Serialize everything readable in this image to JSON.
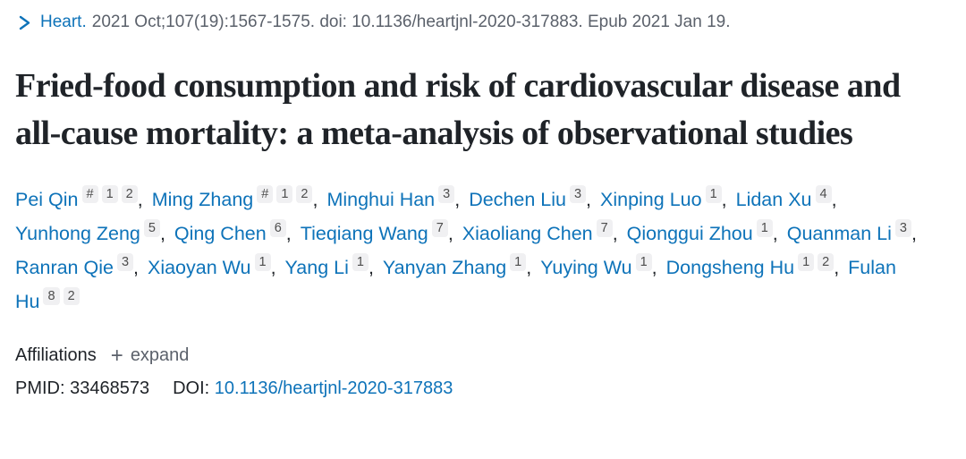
{
  "colors": {
    "link_blue": "#0e73b9",
    "text_dark": "#1f2328",
    "text_gray": "#5b616b",
    "badge_bg": "#f0f0f2",
    "badge_text": "#4d4d4d",
    "page_bg": "#ffffff"
  },
  "citation": {
    "journal": "Heart.",
    "details": "2021 Oct;107(19):1567-1575. doi: 10.1136/heartjnl-2020-317883. Epub 2021 Jan 19."
  },
  "title": "Fried-food consumption and risk of cardiovascular disease and all-cause mortality: a meta-analysis of observational studies",
  "authors": [
    {
      "name": "Pei Qin",
      "sups": [
        "#",
        "1",
        "2"
      ]
    },
    {
      "name": "Ming Zhang",
      "sups": [
        "#",
        "1",
        "2"
      ]
    },
    {
      "name": "Minghui Han",
      "sups": [
        "3"
      ]
    },
    {
      "name": "Dechen Liu",
      "sups": [
        "3"
      ]
    },
    {
      "name": "Xinping Luo",
      "sups": [
        "1"
      ]
    },
    {
      "name": "Lidan Xu",
      "sups": [
        "4"
      ]
    },
    {
      "name": "Yunhong Zeng",
      "sups": [
        "5"
      ]
    },
    {
      "name": "Qing Chen",
      "sups": [
        "6"
      ]
    },
    {
      "name": "Tieqiang Wang",
      "sups": [
        "7"
      ]
    },
    {
      "name": "Xiaoliang Chen",
      "sups": [
        "7"
      ]
    },
    {
      "name": "Qionggui Zhou",
      "sups": [
        "1"
      ]
    },
    {
      "name": "Quanman Li",
      "sups": [
        "3"
      ]
    },
    {
      "name": "Ranran Qie",
      "sups": [
        "3"
      ]
    },
    {
      "name": "Xiaoyan Wu",
      "sups": [
        "1"
      ]
    },
    {
      "name": "Yang Li",
      "sups": [
        "1"
      ]
    },
    {
      "name": "Yanyan Zhang",
      "sups": [
        "1"
      ]
    },
    {
      "name": "Yuying Wu",
      "sups": [
        "1"
      ]
    },
    {
      "name": "Dongsheng Hu",
      "sups": [
        "1",
        "2"
      ]
    },
    {
      "name": "Fulan Hu",
      "sups": [
        "8",
        "2"
      ]
    }
  ],
  "authors_separator": ", ",
  "affiliations": {
    "label": "Affiliations",
    "plus_glyph": "+",
    "expand_label": "expand"
  },
  "identifiers": {
    "pmid_label": "PMID:",
    "pmid_value": "33468573",
    "doi_label": "DOI:",
    "doi_value": "10.1136/heartjnl-2020-317883"
  }
}
